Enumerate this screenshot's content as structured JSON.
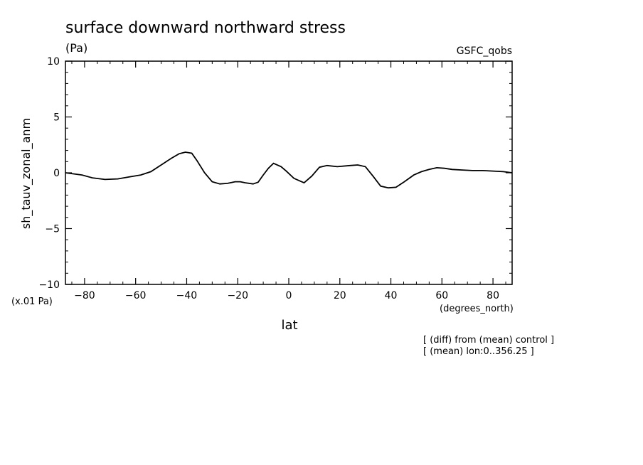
{
  "chart_data": {
    "type": "line",
    "title": "surface downward northward stress",
    "units": "(Pa)",
    "dataset": "GSFC_qobs",
    "ylabel": "sh_tauv_zonal_anm",
    "yunits": "(x.01 Pa)",
    "xlabel": "lat",
    "xunits": "(degrees_north)",
    "notes": [
      "[ (diff) from (mean) control ]",
      "[ (mean) lon:0..356.25 ]"
    ],
    "xlim": [
      -87.5,
      87.5
    ],
    "ylim": [
      -10,
      10
    ],
    "xticks": [
      -80,
      -60,
      -40,
      -20,
      0,
      20,
      40,
      60,
      80
    ],
    "xtick_labels": [
      "−80",
      "−60",
      "−40",
      "−20",
      "0",
      "20",
      "40",
      "60",
      "80"
    ],
    "yticks": [
      -10,
      -5,
      0,
      5,
      10
    ],
    "ytick_labels": [
      "−10",
      "−5",
      "0",
      "5",
      "10"
    ],
    "grid": false,
    "legend": "none",
    "series": [
      {
        "x": [
          -87.5,
          -81,
          -77,
          -72,
          -67,
          -62,
          -58,
          -54,
          -50,
          -46,
          -43,
          -40.5,
          -38,
          -36,
          -33,
          -30,
          -27,
          -24,
          -21,
          -19,
          -17,
          -14,
          -12,
          -10,
          -8,
          -6,
          -3,
          -1,
          2,
          6,
          9,
          12,
          15,
          19,
          24,
          27,
          30,
          33,
          36,
          39,
          42,
          45,
          49,
          52,
          55,
          58,
          61,
          64,
          68,
          72,
          76,
          80,
          84,
          87.5
        ],
        "y": [
          0.0,
          -0.2,
          -0.45,
          -0.6,
          -0.55,
          -0.35,
          -0.2,
          0.1,
          0.7,
          1.3,
          1.7,
          1.85,
          1.75,
          1.1,
          0.0,
          -0.8,
          -1.0,
          -0.95,
          -0.8,
          -0.8,
          -0.9,
          -1.0,
          -0.85,
          -0.2,
          0.4,
          0.85,
          0.55,
          0.15,
          -0.5,
          -0.9,
          -0.3,
          0.5,
          0.65,
          0.55,
          0.65,
          0.7,
          0.55,
          -0.3,
          -1.2,
          -1.35,
          -1.3,
          -0.85,
          -0.2,
          0.1,
          0.3,
          0.45,
          0.4,
          0.3,
          0.25,
          0.2,
          0.2,
          0.15,
          0.1,
          0.0
        ],
        "color": "#000000"
      }
    ]
  }
}
